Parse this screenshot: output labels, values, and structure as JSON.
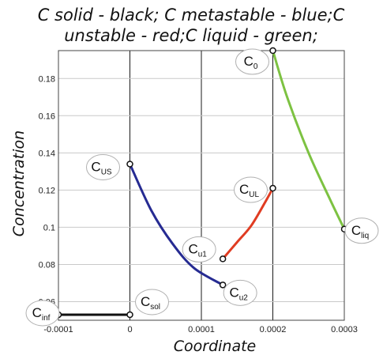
{
  "chart_data": {
    "type": "line",
    "title": [
      "C solid - black; C metastable - blue;C",
      "unstable - red;C liquid - green;"
    ],
    "xlabel": "Coordinate",
    "ylabel": "Concentration",
    "xlim": [
      -0.0001,
      0.0003
    ],
    "ylim": [
      0.05,
      0.195
    ],
    "xticks": [
      -0.0001,
      0,
      0.0001,
      0.0002,
      0.0003
    ],
    "xtick_labels": [
      "-0.0001",
      "0",
      "0.0001",
      "0.0002",
      "0.0003"
    ],
    "yticks": [
      0.06,
      0.08,
      0.1,
      0.12,
      0.14,
      0.16,
      0.18
    ],
    "ytick_labels": [
      "0.06",
      "0.08",
      "0.1",
      "0.12",
      "0.14",
      "0.16",
      "0.18"
    ],
    "grid": true,
    "series": [
      {
        "color": "#111111",
        "x": [
          -0.0001,
          0
        ],
        "y": [
          0.053,
          0.053
        ]
      },
      {
        "color": "#262b92",
        "x": [
          0,
          3e-05,
          6e-05,
          9e-05,
          0.00013
        ],
        "y": [
          0.134,
          0.109,
          0.091,
          0.078,
          0.069
        ]
      },
      {
        "color": "#e03c22",
        "x": [
          0.00013,
          0.00015,
          0.00017,
          0.00019,
          0.0002
        ],
        "y": [
          0.083,
          0.092,
          0.101,
          0.114,
          0.121
        ]
      },
      {
        "color": "#7dc242",
        "x": [
          0.0002,
          0.00022,
          0.00025,
          0.00028,
          0.0003
        ],
        "y": [
          0.195,
          0.17,
          0.14,
          0.115,
          0.099
        ]
      }
    ],
    "points": [
      {
        "name": "C0",
        "x": 0.0002,
        "y": 0.195
      },
      {
        "name": "CUS",
        "x": 0,
        "y": 0.134
      },
      {
        "name": "CUL",
        "x": 0.0002,
        "y": 0.121
      },
      {
        "name": "Cliq",
        "x": 0.0003,
        "y": 0.099
      },
      {
        "name": "Cu1",
        "x": 0.00013,
        "y": 0.083
      },
      {
        "name": "Cu2",
        "x": 0.00013,
        "y": 0.069
      },
      {
        "name": "Cinf",
        "x": -0.0001,
        "y": 0.053
      },
      {
        "name": "Csol",
        "x": 0,
        "y": 0.053
      }
    ],
    "annotations": [
      {
        "base": "C",
        "sub": "0",
        "target": "C0"
      },
      {
        "base": "C",
        "sub": "US",
        "target": "CUS"
      },
      {
        "base": "C",
        "sub": "UL",
        "target": "CUL"
      },
      {
        "base": "C",
        "sub": "liq",
        "target": "Cliq"
      },
      {
        "base": "C",
        "sub": "u1",
        "target": "Cu1"
      },
      {
        "base": "C",
        "sub": "u2",
        "target": "Cu2"
      },
      {
        "base": "C",
        "sub": "inf",
        "target": "Cinf"
      },
      {
        "base": "C",
        "sub": "sol",
        "target": "Csol"
      }
    ]
  }
}
